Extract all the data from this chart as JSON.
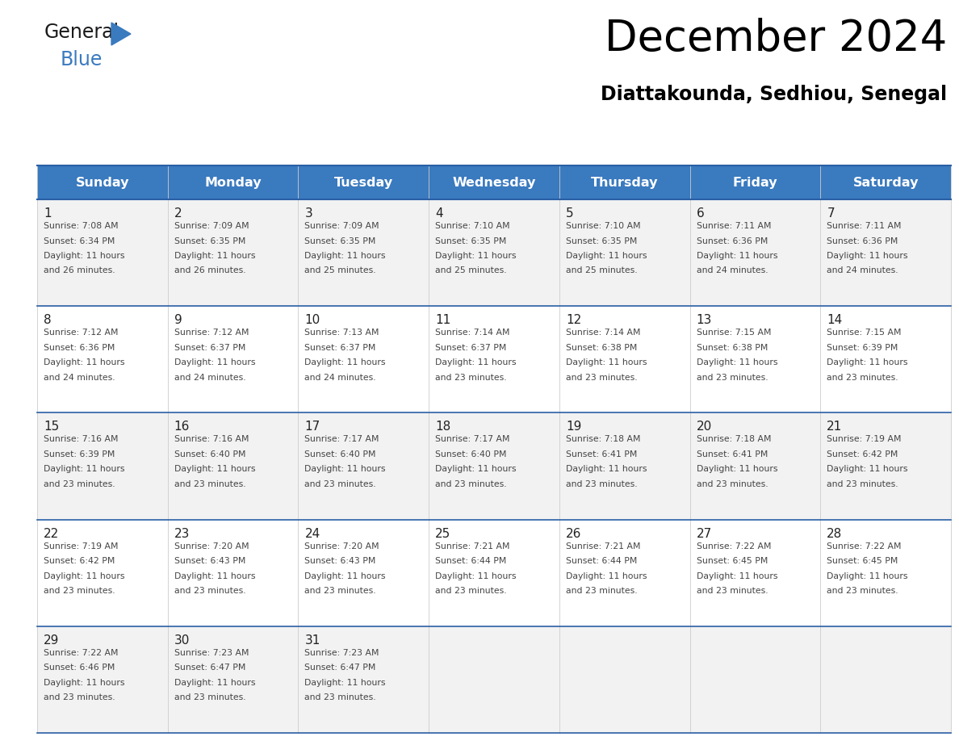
{
  "title": "December 2024",
  "subtitle": "Diattakounda, Sedhiou, Senegal",
  "header_bg_color": "#3a7abf",
  "header_text_color": "#ffffff",
  "cell_bg_even": "#f2f2f2",
  "cell_bg_odd": "#ffffff",
  "grid_line_color": "#2a5fa5",
  "text_color": "#444444",
  "day_num_color": "#222222",
  "days_of_week": [
    "Sunday",
    "Monday",
    "Tuesday",
    "Wednesday",
    "Thursday",
    "Friday",
    "Saturday"
  ],
  "calendar": [
    [
      {
        "day": 1,
        "sunrise": "7:08 AM",
        "sunset": "6:34 PM",
        "daylight_hrs": 11,
        "daylight_min": 26
      },
      {
        "day": 2,
        "sunrise": "7:09 AM",
        "sunset": "6:35 PM",
        "daylight_hrs": 11,
        "daylight_min": 26
      },
      {
        "day": 3,
        "sunrise": "7:09 AM",
        "sunset": "6:35 PM",
        "daylight_hrs": 11,
        "daylight_min": 25
      },
      {
        "day": 4,
        "sunrise": "7:10 AM",
        "sunset": "6:35 PM",
        "daylight_hrs": 11,
        "daylight_min": 25
      },
      {
        "day": 5,
        "sunrise": "7:10 AM",
        "sunset": "6:35 PM",
        "daylight_hrs": 11,
        "daylight_min": 25
      },
      {
        "day": 6,
        "sunrise": "7:11 AM",
        "sunset": "6:36 PM",
        "daylight_hrs": 11,
        "daylight_min": 24
      },
      {
        "day": 7,
        "sunrise": "7:11 AM",
        "sunset": "6:36 PM",
        "daylight_hrs": 11,
        "daylight_min": 24
      }
    ],
    [
      {
        "day": 8,
        "sunrise": "7:12 AM",
        "sunset": "6:36 PM",
        "daylight_hrs": 11,
        "daylight_min": 24
      },
      {
        "day": 9,
        "sunrise": "7:12 AM",
        "sunset": "6:37 PM",
        "daylight_hrs": 11,
        "daylight_min": 24
      },
      {
        "day": 10,
        "sunrise": "7:13 AM",
        "sunset": "6:37 PM",
        "daylight_hrs": 11,
        "daylight_min": 24
      },
      {
        "day": 11,
        "sunrise": "7:14 AM",
        "sunset": "6:37 PM",
        "daylight_hrs": 11,
        "daylight_min": 23
      },
      {
        "day": 12,
        "sunrise": "7:14 AM",
        "sunset": "6:38 PM",
        "daylight_hrs": 11,
        "daylight_min": 23
      },
      {
        "day": 13,
        "sunrise": "7:15 AM",
        "sunset": "6:38 PM",
        "daylight_hrs": 11,
        "daylight_min": 23
      },
      {
        "day": 14,
        "sunrise": "7:15 AM",
        "sunset": "6:39 PM",
        "daylight_hrs": 11,
        "daylight_min": 23
      }
    ],
    [
      {
        "day": 15,
        "sunrise": "7:16 AM",
        "sunset": "6:39 PM",
        "daylight_hrs": 11,
        "daylight_min": 23
      },
      {
        "day": 16,
        "sunrise": "7:16 AM",
        "sunset": "6:40 PM",
        "daylight_hrs": 11,
        "daylight_min": 23
      },
      {
        "day": 17,
        "sunrise": "7:17 AM",
        "sunset": "6:40 PM",
        "daylight_hrs": 11,
        "daylight_min": 23
      },
      {
        "day": 18,
        "sunrise": "7:17 AM",
        "sunset": "6:40 PM",
        "daylight_hrs": 11,
        "daylight_min": 23
      },
      {
        "day": 19,
        "sunrise": "7:18 AM",
        "sunset": "6:41 PM",
        "daylight_hrs": 11,
        "daylight_min": 23
      },
      {
        "day": 20,
        "sunrise": "7:18 AM",
        "sunset": "6:41 PM",
        "daylight_hrs": 11,
        "daylight_min": 23
      },
      {
        "day": 21,
        "sunrise": "7:19 AM",
        "sunset": "6:42 PM",
        "daylight_hrs": 11,
        "daylight_min": 23
      }
    ],
    [
      {
        "day": 22,
        "sunrise": "7:19 AM",
        "sunset": "6:42 PM",
        "daylight_hrs": 11,
        "daylight_min": 23
      },
      {
        "day": 23,
        "sunrise": "7:20 AM",
        "sunset": "6:43 PM",
        "daylight_hrs": 11,
        "daylight_min": 23
      },
      {
        "day": 24,
        "sunrise": "7:20 AM",
        "sunset": "6:43 PM",
        "daylight_hrs": 11,
        "daylight_min": 23
      },
      {
        "day": 25,
        "sunrise": "7:21 AM",
        "sunset": "6:44 PM",
        "daylight_hrs": 11,
        "daylight_min": 23
      },
      {
        "day": 26,
        "sunrise": "7:21 AM",
        "sunset": "6:44 PM",
        "daylight_hrs": 11,
        "daylight_min": 23
      },
      {
        "day": 27,
        "sunrise": "7:22 AM",
        "sunset": "6:45 PM",
        "daylight_hrs": 11,
        "daylight_min": 23
      },
      {
        "day": 28,
        "sunrise": "7:22 AM",
        "sunset": "6:45 PM",
        "daylight_hrs": 11,
        "daylight_min": 23
      }
    ],
    [
      {
        "day": 29,
        "sunrise": "7:22 AM",
        "sunset": "6:46 PM",
        "daylight_hrs": 11,
        "daylight_min": 23
      },
      {
        "day": 30,
        "sunrise": "7:23 AM",
        "sunset": "6:47 PM",
        "daylight_hrs": 11,
        "daylight_min": 23
      },
      {
        "day": 31,
        "sunrise": "7:23 AM",
        "sunset": "6:47 PM",
        "daylight_hrs": 11,
        "daylight_min": 23
      },
      null,
      null,
      null,
      null
    ]
  ],
  "logo_general_color": "#1a1a1a",
  "logo_blue_color": "#3a7abf",
  "logo_triangle_color": "#3a7abf",
  "fig_width": 11.88,
  "fig_height": 9.18,
  "dpi": 100
}
